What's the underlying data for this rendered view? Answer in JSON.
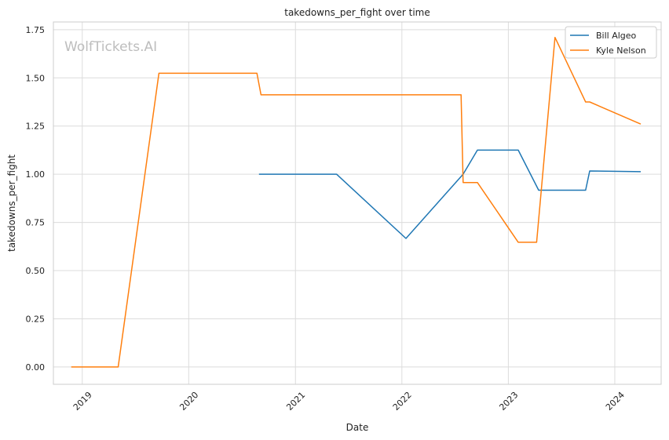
{
  "chart_data": {
    "type": "line",
    "title": "takedowns_per_fight over time",
    "xlabel": "Date",
    "ylabel": "takedowns_per_fight",
    "watermark": "WolfTickets.AI",
    "xlim": [
      "2018-09-24",
      "2024-06-08"
    ],
    "ylim": [
      -0.09,
      1.79
    ],
    "x_ticks": [
      "2019-01-01",
      "2020-01-01",
      "2021-01-01",
      "2022-01-01",
      "2023-01-01",
      "2024-01-01"
    ],
    "x_tick_labels": [
      "2019",
      "2020",
      "2021",
      "2022",
      "2023",
      "2024"
    ],
    "y_ticks": [
      0.0,
      0.25,
      0.5,
      0.75,
      1.0,
      1.25,
      1.5,
      1.75
    ],
    "y_tick_labels": [
      "0.00",
      "0.25",
      "0.50",
      "0.75",
      "1.00",
      "1.25",
      "1.50",
      "1.75"
    ],
    "grid": true,
    "legend_position": "top-right",
    "series": [
      {
        "name": "Bill Algeo",
        "color": "#1f77b4",
        "x": [
          "2020-08-29",
          "2021-05-22",
          "2022-01-15",
          "2022-07-30",
          "2022-09-17",
          "2023-02-04",
          "2023-04-15",
          "2023-09-23",
          "2023-10-07",
          "2024-03-30"
        ],
        "y": [
          1.0,
          1.0,
          0.667,
          1.0,
          1.125,
          1.125,
          0.917,
          0.917,
          1.017,
          1.013
        ]
      },
      {
        "name": "Kyle Nelson",
        "color": "#ff7f0e",
        "x": [
          "2018-11-24",
          "2019-05-04",
          "2019-09-21",
          "2020-08-22",
          "2020-09-05",
          "2022-07-23",
          "2022-07-30",
          "2022-09-17",
          "2023-02-04",
          "2023-04-08",
          "2023-06-10",
          "2023-09-23",
          "2023-10-07",
          "2024-03-30"
        ],
        "y": [
          0.0,
          0.0,
          1.524,
          1.524,
          1.412,
          1.412,
          0.957,
          0.957,
          0.647,
          0.647,
          1.71,
          1.375,
          1.375,
          1.26
        ]
      }
    ]
  }
}
